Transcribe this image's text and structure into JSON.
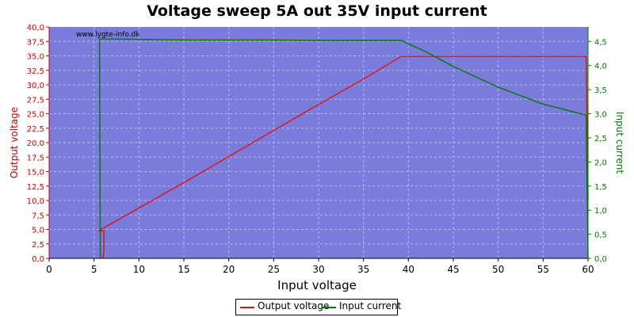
{
  "chart_data": {
    "type": "line",
    "title": "Voltage sweep 5A out 35V input current",
    "watermark": "www.lygte-info.dk",
    "xlabel": "Input voltage",
    "ylabel_left": "Output voltage",
    "ylabel_right": "Input current",
    "xlim": [
      0,
      60
    ],
    "ylim_left": [
      0,
      40
    ],
    "ylim_right": [
      0,
      4.8
    ],
    "x_ticks": [
      "0",
      "5",
      "10",
      "15",
      "20",
      "25",
      "30",
      "35",
      "40",
      "45",
      "50",
      "55",
      "60"
    ],
    "y_left_ticks": [
      "0,0",
      "2,5",
      "5,0",
      "7,5",
      "10,0",
      "12,5",
      "15,0",
      "17,5",
      "20,0",
      "22,5",
      "25,0",
      "27,5",
      "30,0",
      "32,5",
      "35,0",
      "37,5",
      "40,0"
    ],
    "y_right_ticks": [
      "0,0",
      "0,5",
      "1,0",
      "1,5",
      "2,0",
      "2,5",
      "3,0",
      "3,5",
      "4,0",
      "4,5"
    ],
    "grid": true,
    "legend": "bottom-center",
    "colors": {
      "plot_background": "#7b7bdc",
      "output_voltage": "#e01010",
      "input_current": "#007800",
      "grid": "#b8b8ee"
    },
    "series": [
      {
        "name": "Output voltage",
        "axis": "left",
        "points": [
          [
            6.0,
            0.0
          ],
          [
            6.0,
            0.4
          ],
          [
            6.1,
            1.0
          ],
          [
            6.1,
            4.8
          ],
          [
            5.5,
            4.8
          ],
          [
            6.0,
            5.2
          ],
          [
            10,
            8.7
          ],
          [
            15,
            13.1
          ],
          [
            20,
            17.6
          ],
          [
            25,
            22.1
          ],
          [
            30,
            26.6
          ],
          [
            35,
            31.0
          ],
          [
            39.2,
            34.9
          ],
          [
            45,
            34.9
          ],
          [
            50,
            34.9
          ],
          [
            55,
            34.9
          ],
          [
            59.8,
            34.9
          ],
          [
            60.0,
            10.0
          ]
        ]
      },
      {
        "name": "Input current",
        "axis": "right",
        "points": [
          [
            5.7,
            0.0
          ],
          [
            5.6,
            4.55
          ],
          [
            7.0,
            4.55
          ],
          [
            15,
            4.53
          ],
          [
            20,
            4.53
          ],
          [
            25,
            4.53
          ],
          [
            30,
            4.52
          ],
          [
            35,
            4.52
          ],
          [
            39.2,
            4.52
          ],
          [
            42,
            4.28
          ],
          [
            45,
            3.98
          ],
          [
            50,
            3.55
          ],
          [
            55,
            3.2
          ],
          [
            59.8,
            2.97
          ],
          [
            60.0,
            0.0
          ]
        ]
      }
    ]
  }
}
